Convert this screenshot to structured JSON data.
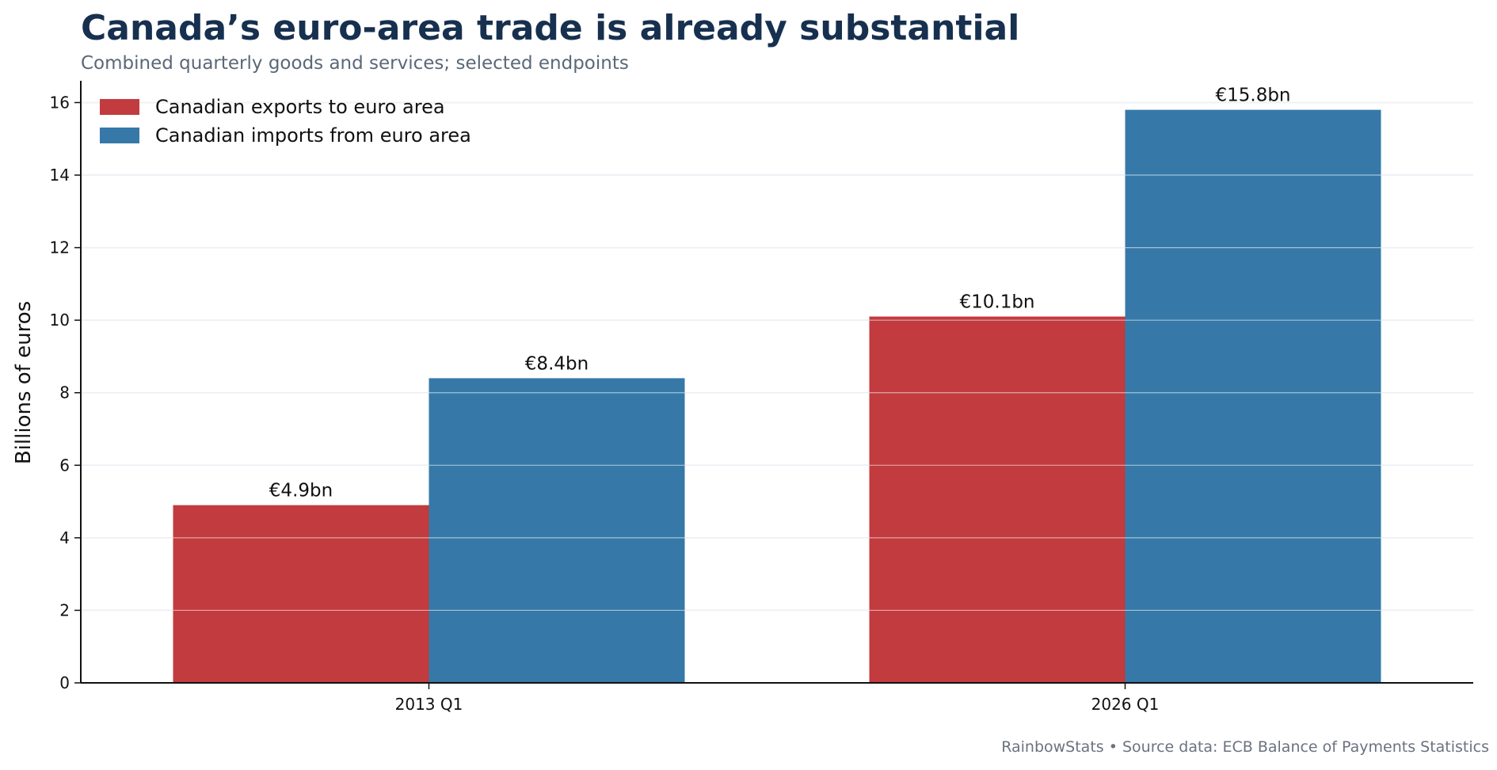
{
  "title": "Canada’s euro-area trade is already substantial",
  "subtitle": "Combined quarterly goods and services; selected endpoints",
  "source": "RainbowStats • Source data: ECB Balance of Payments Statistics",
  "chart_data": {
    "type": "bar",
    "categories": [
      "2013 Q1",
      "2026 Q1"
    ],
    "series": [
      {
        "name": "Canadian exports to euro area",
        "values": [
          4.9,
          10.1
        ],
        "labels": [
          "€4.9bn",
          "€10.1bn"
        ],
        "color": "#c23b3e"
      },
      {
        "name": "Canadian imports from euro area",
        "values": [
          8.4,
          15.8
        ],
        "labels": [
          "€8.4bn",
          "€15.8bn"
        ],
        "color": "#3679a8"
      }
    ],
    "xlabel": "",
    "ylabel": "Billions of euros",
    "ylim": [
      0,
      16.6
    ],
    "yticks": [
      0,
      2,
      4,
      6,
      8,
      10,
      12,
      14,
      16
    ],
    "grid": true,
    "legend": "top-left"
  }
}
